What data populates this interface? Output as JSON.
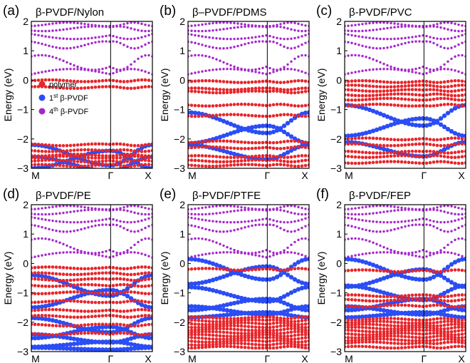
{
  "figure": {
    "colors": {
      "polymer": "#e8262b",
      "first_pvdf": "#2a4df5",
      "fourth_pvdf": "#a326c9"
    },
    "legend": {
      "panel": "a",
      "entries": [
        {
          "key": "polymer",
          "label": "polymer",
          "superscript": ""
        },
        {
          "key": "first_pvdf",
          "label": "1",
          "superscript": "st",
          "label_after": " β-PVDF"
        },
        {
          "key": "fourth_pvdf",
          "label": "4",
          "superscript": "th",
          "label_after": " β-PVDF"
        }
      ]
    }
  },
  "chart_data": [
    {
      "type": "scatter",
      "panel_label": "(a)",
      "title": "β-PVDF/Nylon",
      "xlabel": "",
      "ylabel": "Energy (eV)",
      "ylim": [
        -3,
        2
      ],
      "xticks": [
        "M",
        "Γ",
        "X"
      ],
      "yticks": [
        -3,
        -2,
        -1,
        0,
        1,
        2
      ],
      "polymer_levels": [
        -0.02,
        -0.25,
        -2.2,
        -2.4,
        -2.55,
        -2.62,
        -2.75,
        -2.9
      ],
      "first_pvdf_bands": [
        -2.55,
        -2.7,
        -2.85
      ],
      "fourth_pvdf_bands": [
        0.2,
        0.6,
        1.2,
        1.55,
        1.75,
        1.9
      ]
    },
    {
      "type": "scatter",
      "panel_label": "(b)",
      "title": "β–PVDF/PDMS",
      "xlabel": "",
      "ylabel": "Energy (eV)",
      "ylim": [
        -3,
        2
      ],
      "xticks": [
        "M",
        "Γ",
        "X"
      ],
      "yticks": [
        -3,
        -2,
        -1,
        0,
        1,
        2
      ],
      "polymer_levels": [
        -0.05,
        -0.3,
        -0.4,
        -0.85,
        -1.2,
        -2.1,
        -2.3,
        -2.6,
        -2.75,
        -2.9
      ],
      "first_pvdf_bands": [
        -1.45,
        -1.85,
        -2.45
      ],
      "fourth_pvdf_bands": [
        0.2,
        0.6,
        1.2,
        1.55,
        1.75,
        1.9
      ]
    },
    {
      "type": "scatter",
      "panel_label": "(c)",
      "title": "β-PVDF/PVC",
      "xlabel": "",
      "ylabel": "Energy (eV)",
      "ylim": [
        -3,
        2
      ],
      "xticks": [
        "M",
        "Γ",
        "X"
      ],
      "yticks": [
        -3,
        -2,
        -1,
        0,
        1,
        2
      ],
      "polymer_levels": [
        -0.05,
        -0.2,
        -0.35,
        -0.5,
        -0.65,
        -0.85,
        -2.0,
        -2.2,
        -2.45,
        -2.6,
        -2.8
      ],
      "first_pvdf_bands": [
        -1.2,
        -1.6,
        -2.35
      ],
      "fourth_pvdf_bands": [
        0.2,
        0.6,
        1.2,
        1.55,
        1.75,
        1.9
      ]
    },
    {
      "type": "scatter",
      "panel_label": "(d)",
      "title": "β-PVDF/PE",
      "xlabel": "",
      "ylabel": "Energy (eV)",
      "ylim": [
        -3,
        2
      ],
      "xticks": [
        "M",
        "Γ",
        "X"
      ],
      "yticks": [
        -3,
        -2,
        -1,
        0,
        1,
        2
      ],
      "polymer_levels": [
        -0.15,
        -0.35,
        -0.55,
        -0.75,
        -1.0,
        -1.3,
        -1.6,
        -1.8,
        -2.1,
        -2.4
      ],
      "first_pvdf_bands": [
        -0.75,
        -1.2,
        -2.1,
        -2.35,
        -2.55,
        -2.75,
        -2.9
      ],
      "fourth_pvdf_bands": [
        0.2,
        0.6,
        1.2,
        1.55,
        1.75,
        1.9
      ]
    },
    {
      "type": "scatter",
      "panel_label": "(e)",
      "title": "β-PVDF/PTFE",
      "xlabel": "",
      "ylabel": "Energy (eV)",
      "ylim": [
        -3,
        2
      ],
      "xticks": [
        "M",
        "Γ",
        "X"
      ],
      "yticks": [
        -3,
        -2,
        -1,
        0,
        1,
        2
      ],
      "polymer_levels": [
        -0.2,
        -1.85,
        -1.95,
        -2.05,
        -2.15,
        -2.25,
        -2.35,
        -2.45,
        -2.55,
        -2.65,
        -2.75,
        -2.85
      ],
      "first_pvdf_bands": [
        -0.2,
        -0.4,
        -1.05,
        -1.4,
        -1.6,
        -1.75
      ],
      "fourth_pvdf_bands": [
        0.2,
        0.6,
        1.2,
        1.55,
        1.75,
        1.9
      ]
    },
    {
      "type": "scatter",
      "panel_label": "(f)",
      "title": "β-PVDF/FEP",
      "xlabel": "",
      "ylabel": "Energy (eV)",
      "ylim": [
        -3,
        2
      ],
      "xticks": [
        "M",
        "Γ",
        "X"
      ],
      "yticks": [
        -3,
        -2,
        -1,
        0,
        1,
        2
      ],
      "polymer_levels": [
        -0.25,
        -1.1,
        -1.25,
        -1.45,
        -1.9,
        -2.0,
        -2.1,
        -2.2,
        -2.3,
        -2.4,
        -2.5,
        -2.6,
        -2.7,
        -2.85
      ],
      "first_pvdf_bands": [
        -0.2,
        -0.5,
        -1.0,
        -1.4,
        -1.6,
        -1.75
      ],
      "fourth_pvdf_bands": [
        0.2,
        0.6,
        1.2,
        1.55,
        1.75,
        1.9
      ]
    }
  ]
}
